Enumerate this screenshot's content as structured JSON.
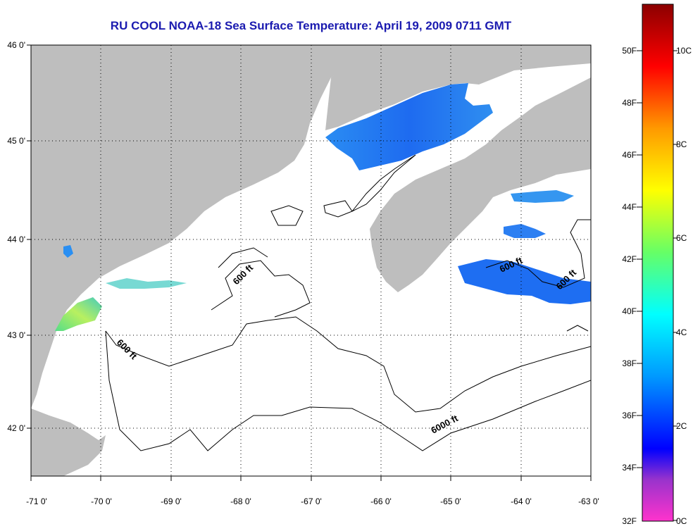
{
  "title": "RU COOL  NOAA-18  Sea Surface Temperature:  April 19, 2009 0711 GMT",
  "map": {
    "lon_range": [
      -71,
      -63
    ],
    "lat_range": [
      41.5,
      46
    ],
    "lon_ticks": [
      "-71 0'",
      "-70 0'",
      "-69 0'",
      "-68 0'",
      "-67 0'",
      "-66 0'",
      "-65 0'",
      "-64 0'",
      "-63 0'"
    ],
    "lat_ticks": [
      "46 0'",
      "45 0'",
      "44 0'",
      "43 0'",
      "42 0'"
    ],
    "contour_labels": [
      "600 ft",
      "600 ft",
      "600 ft",
      "600 ft",
      "6000 ft"
    ],
    "colors": {
      "land": "#bebebe",
      "water": "#ffffff",
      "contour": "#000000",
      "frame": "#000000"
    }
  },
  "colorbar": {
    "fahrenheit_labels": [
      "50F",
      "48F",
      "46F",
      "44F",
      "42F",
      "40F",
      "38F",
      "36F",
      "34F",
      "32F"
    ],
    "celsius_labels": [
      "10C",
      "8C",
      "6C",
      "4C",
      "2C",
      "0C"
    ],
    "colors": [
      "#ff33cc",
      "#9933cc",
      "#0000ff",
      "#0099ff",
      "#00ffff",
      "#66ff66",
      "#ffff00",
      "#ff9900",
      "#ff0000",
      "#8b0000"
    ]
  }
}
